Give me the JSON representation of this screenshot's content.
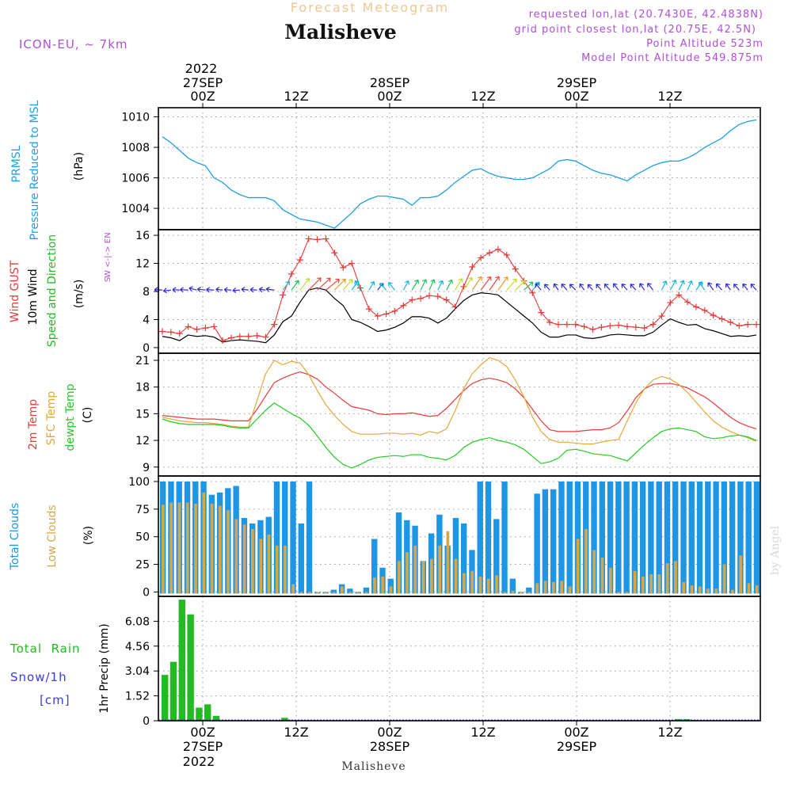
{
  "header": {
    "title_small": "Forecast Meteogram",
    "title_big": "Malisheve",
    "model": "ICON-EU, ~ 7km",
    "requested": "requested lon,lat (20.7430E, 42.4838N)",
    "grid": "grid point closest lon,lat (20.75E, 42.5N)",
    "point_alt": "Point Altitude 523m",
    "model_alt": "Model Point Altitude 549.875m",
    "footer_name": "Malisheve",
    "credit": "by Angel"
  },
  "axis_top": {
    "year": "2022",
    "labels": [
      {
        "h": 0,
        "time": "00Z",
        "date": "27SEP"
      },
      {
        "h": 12,
        "time": "12Z",
        "date": ""
      },
      {
        "h": 24,
        "time": "00Z",
        "date": "28SEP"
      },
      {
        "h": 36,
        "time": "12Z",
        "date": ""
      },
      {
        "h": 48,
        "time": "00Z",
        "date": "29SEP"
      },
      {
        "h": 60,
        "time": "12Z",
        "date": ""
      }
    ]
  },
  "colors": {
    "prmsl": "#1ea0e6",
    "gust": "#e83a3a",
    "wind": "#000000",
    "direction": "#22bb22",
    "t2m": "#e63c3c",
    "tsfc": "#e8a63a",
    "dewpt": "#22cc22",
    "total_cloud": "#1e96e6",
    "low_cloud": "#d4a84a",
    "rain": "#22bb22",
    "snow": "#3a3ae6",
    "title": "#f2c690",
    "meta": "#b050d8"
  },
  "chart_data": [
    {
      "type": "line",
      "ylabels": [
        "PRMSL",
        "Pressure Reduced to MSL",
        "(hPa)"
      ],
      "yticks": [
        1004,
        1006,
        1008,
        1010
      ],
      "ylim": [
        1002.6,
        1010.6
      ],
      "series": [
        {
          "values": [
            1008.7,
            1008.3,
            1007.8,
            1007.3,
            1007.0,
            1006.8,
            1006.0,
            1005.7,
            1005.2,
            1004.9,
            1004.7,
            1004.7,
            1004.7,
            1004.5,
            1003.9,
            1003.6,
            1003.3,
            1003.2,
            1003.1,
            1002.9,
            1002.7,
            1003.2,
            1003.7,
            1004.3,
            1004.6,
            1004.8,
            1004.8,
            1004.7,
            1004.6,
            1004.2,
            1004.7,
            1004.7,
            1004.8,
            1005.2,
            1005.7,
            1006.1,
            1006.5,
            1006.6,
            1006.3,
            1006.1,
            1006.0,
            1005.9,
            1005.9,
            1006.0,
            1006.3,
            1006.6,
            1007.1,
            1007.2,
            1007.1,
            1006.8,
            1006.5,
            1006.3,
            1006.2,
            1006.0,
            1005.8,
            1006.2,
            1006.5,
            1006.8,
            1007.0,
            1007.1,
            1007.1,
            1007.3,
            1007.6,
            1008.0,
            1008.3,
            1008.6,
            1009.1,
            1009.5,
            1009.7,
            1009.8
          ]
        }
      ]
    },
    {
      "type": "line",
      "ylabels": [
        "Wind GUST",
        "10m Wind",
        "Speed and Direction",
        "(m/s)"
      ],
      "compass": [
        "N",
        "W <-|-> E",
        "S"
      ],
      "yticks": [
        0,
        4,
        8,
        12,
        16
      ],
      "ylim": [
        -0.8,
        16.8
      ],
      "arrow_row": 8.2,
      "series": [
        {
          "key": "gust",
          "values": [
            2.3,
            2.2,
            2.0,
            3.0,
            2.6,
            2.8,
            3.0,
            1.0,
            1.4,
            1.6,
            1.6,
            1.7,
            1.5,
            3.3,
            7.5,
            10.5,
            12.5,
            15.5,
            15.4,
            15.5,
            13.5,
            11.4,
            12.0,
            8.5,
            5.5,
            4.5,
            4.8,
            5.2,
            6.0,
            6.8,
            7.0,
            7.4,
            7.3,
            6.8,
            5.8,
            8.7,
            11.5,
            12.8,
            13.5,
            14.0,
            13.2,
            11.2,
            9.5,
            7.8,
            5.0,
            3.6,
            3.3,
            3.3,
            3.3,
            3.0,
            2.6,
            2.9,
            3.1,
            3.2,
            3.0,
            2.9,
            2.8,
            3.3,
            4.5,
            6.4,
            7.5,
            6.5,
            5.8,
            5.3,
            4.6,
            4.1,
            3.6,
            3.1,
            3.3,
            3.3
          ]
        },
        {
          "key": "wind",
          "values": [
            1.6,
            1.4,
            1.0,
            1.8,
            1.6,
            1.7,
            1.5,
            0.8,
            1.0,
            1.1,
            1.0,
            0.9,
            0.7,
            1.8,
            3.7,
            4.5,
            6.5,
            8.2,
            8.5,
            8.2,
            7.0,
            6.0,
            4.0,
            3.6,
            3.0,
            2.3,
            2.5,
            2.9,
            3.5,
            4.4,
            4.4,
            4.2,
            3.5,
            4.2,
            5.5,
            6.7,
            7.5,
            7.8,
            7.7,
            7.5,
            6.5,
            5.5,
            4.5,
            3.5,
            2.2,
            1.5,
            1.5,
            1.8,
            1.8,
            1.4,
            1.3,
            1.5,
            1.8,
            1.9,
            1.8,
            1.7,
            1.7,
            2.2,
            3.2,
            4.1,
            3.6,
            3.2,
            3.3,
            2.7,
            2.4,
            2.0,
            1.6,
            1.7,
            1.6,
            1.8
          ]
        }
      ],
      "arrows": [
        [
          -1.6,
          0.1
        ],
        [
          -1.6,
          -0.2
        ],
        [
          -1.6,
          0.1
        ],
        [
          -1.6,
          0.1
        ],
        [
          -1.5,
          0.4
        ],
        [
          -1.6,
          0.2
        ],
        [
          -1.6,
          0.1
        ],
        [
          -1.6,
          0.2
        ],
        [
          -1.4,
          0.1
        ],
        [
          -1.5,
          -0.1
        ],
        [
          -1.6,
          0.2
        ],
        [
          -1.5,
          0.1
        ],
        [
          -1.5,
          0.2
        ],
        [
          -1.5,
          0.2
        ],
        [
          0.9,
          1.2
        ],
        [
          1.2,
          1.6
        ],
        [
          1.5,
          1.9
        ],
        [
          2.0,
          2.0
        ],
        [
          2.2,
          2.0
        ],
        [
          2.2,
          1.8
        ],
        [
          2.0,
          2.0
        ],
        [
          1.9,
          2.2
        ],
        [
          1.6,
          2.2
        ],
        [
          -0.8,
          1.5
        ],
        [
          0.6,
          1.0
        ],
        [
          0.8,
          1.0
        ],
        [
          -0.9,
          1.0
        ],
        [
          -0.9,
          1.1
        ],
        [
          0.6,
          1.1
        ],
        [
          0.6,
          1.0
        ],
        [
          0.5,
          1.0
        ],
        [
          0.5,
          1.1
        ],
        [
          0.6,
          1.2
        ],
        [
          0.7,
          1.3
        ],
        [
          0.8,
          1.3
        ],
        [
          1.0,
          1.5
        ],
        [
          1.1,
          1.6
        ],
        [
          1.2,
          1.6
        ],
        [
          1.2,
          1.7
        ],
        [
          1.3,
          1.8
        ],
        [
          1.6,
          1.8
        ],
        [
          1.9,
          1.8
        ],
        [
          1.8,
          1.6
        ],
        [
          1.4,
          1.6
        ],
        [
          -0.8,
          0.9
        ],
        [
          -0.9,
          1.0
        ],
        [
          -0.7,
          1.0
        ],
        [
          -0.8,
          0.9
        ],
        [
          -0.8,
          0.8
        ],
        [
          -0.7,
          1.0
        ],
        [
          -0.8,
          0.9
        ],
        [
          -0.8,
          0.9
        ],
        [
          -0.8,
          0.9
        ],
        [
          -0.8,
          1.0
        ],
        [
          -0.9,
          1.0
        ],
        [
          -0.8,
          0.9
        ],
        [
          -0.7,
          1.0
        ],
        [
          -0.8,
          1.0
        ],
        [
          0.6,
          1.2
        ],
        [
          0.7,
          1.3
        ],
        [
          0.6,
          1.2
        ],
        [
          0.5,
          1.1
        ],
        [
          0.8,
          1.1
        ],
        [
          -0.7,
          1.0
        ],
        [
          -0.7,
          1.0
        ],
        [
          -0.8,
          0.9
        ],
        [
          -0.7,
          1.0
        ],
        [
          -0.8,
          0.9
        ],
        [
          -0.8,
          1.0
        ],
        [
          -0.9,
          1.0
        ]
      ]
    },
    {
      "type": "line",
      "ylabels": [
        "2m Temp",
        "SFC Temp",
        "dewpt Temp",
        "(C)"
      ],
      "yticks": [
        9,
        12,
        15,
        18,
        21
      ],
      "ylim": [
        8.0,
        21.8
      ],
      "series": [
        {
          "key": "t2m",
          "values": [
            14.8,
            14.7,
            14.6,
            14.5,
            14.4,
            14.4,
            14.4,
            14.3,
            14.2,
            14.2,
            14.2,
            15.5,
            17.0,
            18.5,
            19.0,
            19.4,
            19.7,
            19.4,
            18.9,
            18.0,
            17.3,
            16.5,
            15.8,
            15.6,
            15.4,
            15.0,
            14.9,
            15.0,
            15.0,
            15.1,
            14.9,
            14.7,
            14.8,
            15.6,
            16.6,
            17.6,
            18.4,
            18.8,
            19.0,
            18.8,
            18.5,
            17.8,
            16.8,
            15.5,
            14.2,
            13.2,
            13.0,
            13.0,
            13.0,
            13.1,
            13.2,
            13.2,
            13.4,
            14.0,
            15.3,
            16.8,
            17.8,
            18.3,
            18.4,
            18.4,
            18.2,
            17.9,
            17.4,
            16.9,
            16.2,
            15.4,
            14.6,
            14.0,
            13.6,
            13.3
          ]
        },
        {
          "key": "tsfc",
          "values": [
            14.6,
            14.4,
            14.2,
            14.1,
            14.0,
            14.0,
            13.9,
            13.8,
            13.6,
            13.5,
            13.5,
            16.5,
            19.5,
            21.0,
            20.5,
            20.9,
            20.7,
            19.4,
            17.6,
            16.0,
            14.8,
            13.8,
            13.0,
            12.7,
            12.7,
            12.7,
            12.8,
            12.8,
            12.7,
            12.8,
            12.6,
            13.0,
            12.8,
            13.3,
            15.3,
            17.8,
            19.5,
            20.5,
            21.3,
            21.0,
            20.3,
            18.8,
            16.9,
            14.6,
            13.0,
            12.1,
            11.8,
            11.8,
            11.7,
            11.6,
            11.6,
            11.8,
            12.0,
            12.1,
            14.2,
            16.2,
            17.8,
            18.8,
            19.2,
            18.9,
            18.3,
            17.4,
            16.3,
            15.2,
            14.2,
            13.5,
            13.0,
            12.6,
            12.3,
            11.9
          ]
        },
        {
          "key": "dewpt",
          "values": [
            14.4,
            14.1,
            13.9,
            13.8,
            13.8,
            13.8,
            13.8,
            13.7,
            13.5,
            13.4,
            13.4,
            14.4,
            15.4,
            16.2,
            15.6,
            15.0,
            14.5,
            13.7,
            12.5,
            11.2,
            10.1,
            9.3,
            8.9,
            9.3,
            9.8,
            10.1,
            10.2,
            10.3,
            10.2,
            10.4,
            10.4,
            10.1,
            10.0,
            9.8,
            10.3,
            11.2,
            11.8,
            12.1,
            12.3,
            12.0,
            11.8,
            11.5,
            11.0,
            10.2,
            9.4,
            9.6,
            10.0,
            10.9,
            11.0,
            10.8,
            10.5,
            10.4,
            10.3,
            10.0,
            9.7,
            10.6,
            11.5,
            12.3,
            13.0,
            13.3,
            13.4,
            13.2,
            13.0,
            12.4,
            12.2,
            12.3,
            12.5,
            12.6,
            12.4,
            12.0
          ]
        }
      ]
    },
    {
      "type": "bar",
      "ylabels": [
        "Total Clouds",
        "Low Clouds",
        "(%)"
      ],
      "yticks": [
        0,
        25,
        50,
        75,
        100
      ],
      "ylim": [
        -4,
        105
      ],
      "series": [
        {
          "key": "total",
          "values": [
            100,
            100,
            100,
            100,
            100,
            100,
            88,
            90,
            94,
            96,
            67,
            62,
            65,
            68,
            100,
            100,
            100,
            62,
            100,
            0,
            0,
            2,
            7,
            3,
            0,
            4,
            48,
            22,
            12,
            72,
            65,
            60,
            28,
            53,
            70,
            42,
            67,
            62,
            38,
            100,
            100,
            66,
            100,
            12,
            0,
            4,
            89,
            93,
            93,
            100,
            100,
            100,
            100,
            100,
            100,
            100,
            100,
            100,
            100,
            100,
            100,
            100,
            100,
            100,
            100,
            100,
            100,
            100,
            100,
            100,
            100,
            100,
            100,
            100
          ]
        },
        {
          "key": "low",
          "values": [
            79,
            81,
            81,
            81,
            80,
            90,
            80,
            78,
            74,
            66,
            61,
            57,
            48,
            52,
            42,
            42,
            7,
            0,
            0,
            0,
            0,
            0,
            5,
            0,
            0,
            0,
            13,
            14,
            5,
            28,
            36,
            42,
            28,
            30,
            42,
            55,
            30,
            17,
            19,
            14,
            12,
            15,
            0,
            1,
            0,
            0,
            8,
            10,
            9,
            10,
            5,
            48,
            57,
            38,
            31,
            22,
            0,
            0,
            19,
            14,
            16,
            16,
            26,
            28,
            9,
            6,
            5,
            3,
            3,
            25,
            2,
            33,
            8,
            6
          ]
        }
      ]
    },
    {
      "type": "bar",
      "ylabels": [
        "Total  Rain",
        "Snow/1h",
        "[cm]",
        "1hr Precip (mm)"
      ],
      "yticks": [
        "0",
        "1.52",
        "3.04",
        "4.56",
        "6.08"
      ],
      "ylim": [
        0,
        7.6
      ],
      "series": [
        {
          "key": "rain",
          "values": [
            2.8,
            3.6,
            7.4,
            6.5,
            0.8,
            1.0,
            0.3,
            0,
            0,
            0,
            0,
            0,
            0,
            0,
            0.18,
            0,
            0,
            0,
            0,
            0,
            0,
            0,
            0,
            0,
            0,
            0,
            0,
            0,
            0,
            0,
            0,
            0,
            0,
            0,
            0,
            0,
            0,
            0,
            0,
            0,
            0,
            0,
            0,
            0,
            0,
            0,
            0,
            0,
            0,
            0,
            0,
            0,
            0,
            0,
            0,
            0,
            0,
            0,
            0,
            0,
            0.1,
            0.1,
            0.05,
            0,
            0,
            0,
            0,
            0,
            0,
            0
          ]
        },
        {
          "key": "snow",
          "values": [
            0
          ]
        }
      ]
    }
  ]
}
